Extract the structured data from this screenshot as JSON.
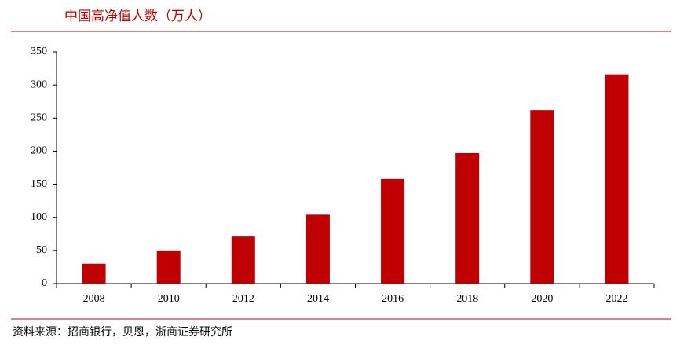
{
  "chart_data": {
    "type": "bar",
    "title": "中国高净值人数（万人）",
    "categories": [
      "2008",
      "2010",
      "2012",
      "2014",
      "2016",
      "2018",
      "2020",
      "2022"
    ],
    "values": [
      30,
      50,
      71,
      104,
      158,
      197,
      262,
      316
    ],
    "color": "#c00000",
    "ylim": [
      0,
      350
    ],
    "yticks": [
      0,
      50,
      100,
      150,
      200,
      250,
      300,
      350
    ],
    "grid": false,
    "source": "资料来源：招商银行，贝恩，浙商证券研究所"
  }
}
